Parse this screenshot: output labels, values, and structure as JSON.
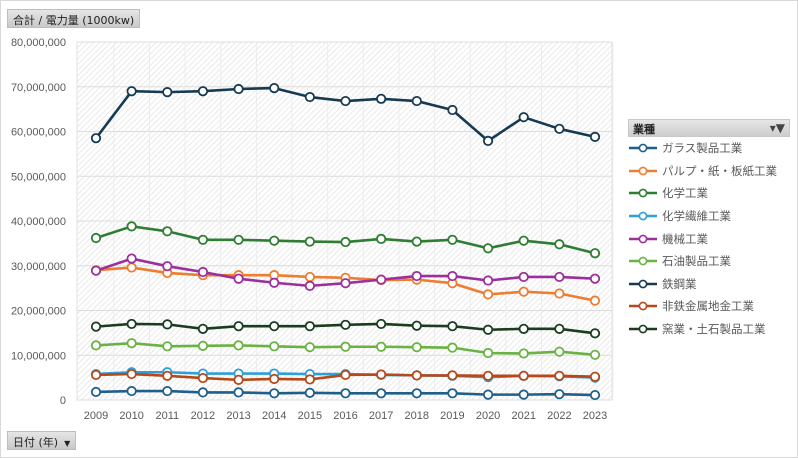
{
  "value_field": {
    "label": "合計 / 電力量 (1000kw)"
  },
  "axis_field": {
    "label": "日付 (年)",
    "arrow": "▼"
  },
  "legend": {
    "title": "業種",
    "filter_icon": "filter-icon"
  },
  "chart_data": {
    "type": "line",
    "title": "",
    "xlabel": "日付 (年)",
    "ylabel": "合計 / 電力量 (1000kw)",
    "ylim": [
      0,
      80000000
    ],
    "yticks": [
      0,
      10000000,
      20000000,
      30000000,
      40000000,
      50000000,
      60000000,
      70000000,
      80000000
    ],
    "ytick_labels": [
      "0",
      "10,000,000",
      "20,000,000",
      "30,000,000",
      "40,000,000",
      "50,000,000",
      "60,000,000",
      "70,000,000",
      "80,000,000"
    ],
    "grid": true,
    "legend_position": "right",
    "x": [
      "2009",
      "2010",
      "2011",
      "2012",
      "2013",
      "2014",
      "2015",
      "2016",
      "2017",
      "2018",
      "2019",
      "2020",
      "2021",
      "2022",
      "2023"
    ],
    "series": [
      {
        "name": "ガラス製品工業",
        "color": "#1f5f8b",
        "values": [
          1800000,
          2000000,
          2000000,
          1700000,
          1700000,
          1500000,
          1600000,
          1500000,
          1500000,
          1500000,
          1500000,
          1200000,
          1200000,
          1300000,
          1100000
        ]
      },
      {
        "name": "パルプ・紙・板紙工業",
        "color": "#ed7d31",
        "values": [
          29000000,
          29600000,
          28400000,
          27900000,
          27900000,
          27900000,
          27500000,
          27300000,
          26800000,
          26900000,
          26100000,
          23600000,
          24200000,
          23800000,
          22200000
        ]
      },
      {
        "name": "化学工業",
        "color": "#2e7d32",
        "values": [
          36200000,
          38800000,
          37700000,
          35800000,
          35800000,
          35600000,
          35400000,
          35300000,
          36000000,
          35400000,
          35800000,
          33900000,
          35600000,
          34800000,
          32800000
        ]
      },
      {
        "name": "化学繊維工業",
        "color": "#2e9fd8",
        "values": [
          5800000,
          6200000,
          6200000,
          5900000,
          5900000,
          5900000,
          5800000,
          5800000,
          5600000,
          5500000,
          5400000,
          5100000,
          5400000,
          5300000,
          5000000
        ]
      },
      {
        "name": "機械工業",
        "color": "#9c2f9c",
        "values": [
          28900000,
          31600000,
          29900000,
          28600000,
          27100000,
          26200000,
          25500000,
          26100000,
          26900000,
          27700000,
          27700000,
          26700000,
          27500000,
          27500000,
          27100000
        ]
      },
      {
        "name": "石油製品工業",
        "color": "#6ab343",
        "values": [
          12200000,
          12700000,
          12000000,
          12100000,
          12200000,
          12000000,
          11800000,
          11900000,
          11900000,
          11800000,
          11700000,
          10500000,
          10400000,
          10800000,
          10100000
        ]
      },
      {
        "name": "鉄鋼業",
        "color": "#163a52",
        "values": [
          58500000,
          69000000,
          68800000,
          69000000,
          69500000,
          69700000,
          67700000,
          66800000,
          67300000,
          66800000,
          64800000,
          57900000,
          63200000,
          60600000,
          58800000
        ]
      },
      {
        "name": "非鉄金属地金工業",
        "color": "#b5491a",
        "values": [
          5600000,
          5800000,
          5400000,
          4900000,
          4500000,
          4700000,
          4600000,
          5600000,
          5700000,
          5500000,
          5500000,
          5400000,
          5400000,
          5400000,
          5200000
        ]
      },
      {
        "name": "窯業・土石製品工業",
        "color": "#1b3d1f",
        "values": [
          16400000,
          17000000,
          16900000,
          15900000,
          16500000,
          16500000,
          16500000,
          16800000,
          17000000,
          16600000,
          16500000,
          15700000,
          15900000,
          15900000,
          14900000
        ]
      }
    ]
  }
}
